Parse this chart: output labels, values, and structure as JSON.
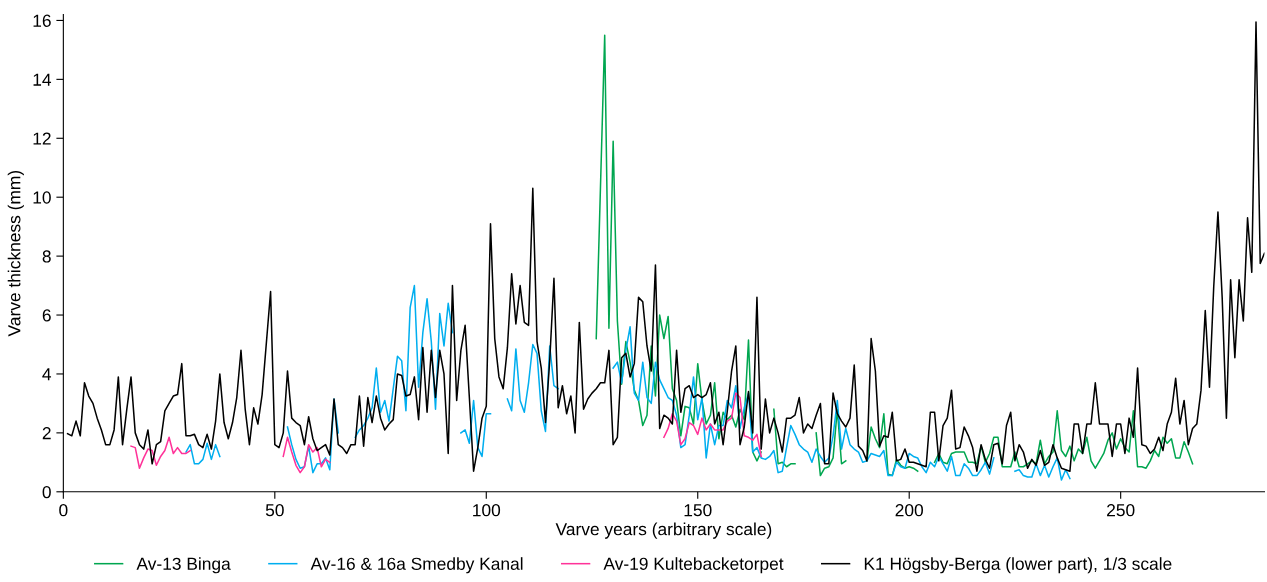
{
  "chart_data": {
    "type": "line",
    "xlabel": "Varve years (arbitrary scale)",
    "ylabel": "Varve thickness (mm)",
    "xlim": [
      0,
      284
    ],
    "xticks": [
      0,
      50,
      100,
      150,
      200,
      250
    ],
    "ylim": [
      0,
      16.2
    ],
    "yticks": [
      0,
      2,
      4,
      6,
      8,
      10,
      12,
      14,
      16
    ],
    "legend": "bottom",
    "line_style": "solid",
    "series": [
      {
        "name": "Av-13 Binga",
        "color": "#00a650",
        "x": [
          126,
          128,
          129,
          130,
          131,
          132,
          133,
          134,
          135,
          136,
          137,
          138,
          139,
          140,
          141,
          142,
          143,
          144,
          145,
          146,
          147,
          148,
          149,
          150,
          151,
          152,
          153,
          154,
          155,
          156,
          157,
          158,
          159,
          160,
          161,
          162,
          163,
          164,
          165,
          166,
          168,
          169,
          170,
          171,
          172,
          173,
          174,
          178,
          179,
          180,
          181,
          182,
          183,
          184,
          185,
          186,
          190,
          191,
          192,
          193,
          194,
          195,
          196,
          197,
          198,
          199,
          200,
          201,
          202,
          203,
          206,
          207,
          208,
          209,
          210,
          211,
          212,
          213,
          214,
          215,
          216,
          217,
          218,
          219,
          220,
          221,
          222,
          223,
          224,
          225,
          226,
          227,
          228,
          229,
          230,
          231,
          232,
          233,
          234,
          235,
          236,
          237,
          238,
          239,
          240,
          241,
          242,
          243,
          244,
          245,
          246,
          247,
          248,
          249,
          250,
          251,
          252,
          253,
          254,
          255,
          256,
          257,
          258,
          259,
          260,
          261,
          262,
          263,
          264,
          265,
          266,
          267
        ],
        "values": [
          5.2,
          15.5,
          5.55,
          11.9,
          5.8,
          3.65,
          5.1,
          4.4,
          3.45,
          3.1,
          2.25,
          2.6,
          4.95,
          3.25,
          6.0,
          5.2,
          5.95,
          3.5,
          3.1,
          1.9,
          2.9,
          2.85,
          2.3,
          4.35,
          3.1,
          2.3,
          2.6,
          3.7,
          1.8,
          2.7,
          2.45,
          2.6,
          2.2,
          2.8,
          2.45,
          5.15,
          1.35,
          1.05,
          1.35,
          null,
          2.8,
          0.95,
          1.0,
          0.85,
          0.95,
          0.95,
          null,
          2.0,
          0.55,
          0.8,
          0.85,
          1.15,
          2.8,
          0.95,
          1.05,
          null,
          1.05,
          2.2,
          1.8,
          1.5,
          2.65,
          0.6,
          0.55,
          1.1,
          0.9,
          0.8,
          0.85,
          0.8,
          0.7,
          null,
          1.0,
          1.3,
          1.0,
          0.95,
          1.3,
          1.35,
          1.35,
          1.35,
          1.0,
          1.0,
          0.95,
          1.55,
          1.0,
          1.3,
          1.85,
          1.85,
          0.85,
          0.85,
          0.85,
          1.35,
          0.85,
          0.85,
          0.95,
          1.05,
          0.95,
          1.75,
          0.95,
          1.2,
          1.35,
          2.75,
          1.4,
          1.2,
          1.55,
          1.05,
          1.45,
          1.3,
          1.85,
          1.05,
          0.8,
          1.05,
          1.3,
          1.75,
          2.0,
          1.45,
          1.8,
          1.5,
          1.35,
          2.75,
          0.85,
          0.85,
          0.8,
          1.05,
          1.4,
          1.2,
          1.85,
          1.65,
          1.8,
          1.15,
          1.15,
          1.7,
          1.35,
          0.95
        ]
      },
      {
        "name": "Av-16 & 16a Smedby Kanal",
        "color": "#00aeef",
        "x": [
          29,
          30,
          31,
          32,
          33,
          34,
          35,
          36,
          37,
          38,
          53,
          54,
          55,
          56,
          57,
          58,
          59,
          60,
          61,
          62,
          63,
          64,
          65,
          66,
          69,
          70,
          71,
          72,
          73,
          74,
          75,
          76,
          77,
          78,
          79,
          80,
          81,
          82,
          83,
          84,
          85,
          86,
          87,
          88,
          89,
          90,
          91,
          92,
          93,
          94,
          95,
          96,
          97,
          98,
          99,
          100,
          101,
          102,
          105,
          106,
          107,
          108,
          109,
          110,
          111,
          112,
          113,
          114,
          115,
          116,
          117,
          118,
          130,
          131,
          132,
          133,
          134,
          135,
          136,
          137,
          138,
          139,
          140,
          141,
          142,
          143,
          144,
          145,
          146,
          147,
          148,
          149,
          150,
          151,
          152,
          153,
          154,
          155,
          156,
          157,
          158,
          159,
          160,
          161,
          162,
          163,
          164,
          165,
          166,
          167,
          168,
          169,
          170,
          171,
          172,
          173,
          174,
          175,
          176,
          177,
          178,
          179,
          180,
          181,
          182,
          183,
          184,
          185,
          186,
          187,
          188,
          189,
          190,
          191,
          192,
          193,
          194,
          195,
          196,
          197,
          198,
          199,
          200,
          201,
          202,
          203,
          204,
          205,
          206,
          207,
          208,
          209,
          210,
          211,
          212,
          213,
          214,
          215,
          216,
          217,
          218,
          219,
          220,
          221,
          225,
          226,
          227,
          228,
          229,
          230,
          231,
          232,
          233,
          234,
          235,
          236,
          237,
          238
        ],
        "values": [
          1.35,
          1.6,
          0.95,
          0.95,
          1.1,
          1.65,
          1.1,
          1.6,
          1.2,
          null,
          2.2,
          1.6,
          1.1,
          0.8,
          0.85,
          1.55,
          0.65,
          0.95,
          0.95,
          1.15,
          0.75,
          3.15,
          2.0,
          null,
          1.85,
          2.1,
          2.25,
          2.5,
          2.85,
          4.2,
          2.7,
          3.1,
          2.4,
          3.5,
          4.6,
          4.45,
          2.75,
          6.25,
          7.0,
          3.55,
          5.4,
          6.55,
          5.1,
          2.8,
          6.05,
          4.95,
          6.4,
          5.4,
          null,
          2.0,
          2.1,
          1.65,
          3.1,
          1.5,
          1.2,
          2.65,
          2.65,
          null,
          3.15,
          2.75,
          4.85,
          3.1,
          2.7,
          3.7,
          5.0,
          4.7,
          2.75,
          2.05,
          4.95,
          3.6,
          3.5,
          null,
          4.2,
          4.4,
          3.7,
          4.8,
          5.6,
          3.35,
          3.1,
          4.4,
          3.2,
          3.0,
          4.4,
          3.8,
          3.5,
          3.2,
          3.1,
          2.6,
          1.5,
          1.6,
          2.6,
          3.9,
          2.45,
          3.2,
          1.15,
          2.3,
          1.6,
          2.25,
          2.25,
          3.1,
          2.85,
          3.6,
          2.15,
          2.85,
          3.35,
          1.35,
          1.5,
          1.15,
          1.1,
          1.2,
          1.4,
          0.65,
          0.7,
          1.5,
          2.25,
          1.95,
          1.6,
          1.45,
          1.35,
          1.0,
          1.45,
          1.2,
          1.0,
          1.15,
          1.9,
          3.1,
          1.45,
          2.15,
          1.6,
          1.45,
          1.35,
          1.0,
          1.05,
          1.3,
          1.25,
          1.2,
          1.4,
          0.55,
          0.55,
          1.0,
          0.85,
          0.8,
          1.3,
          1.2,
          1.15,
          0.85,
          0.65,
          1.0,
          0.85,
          1.2,
          0.95,
          0.7,
          1.2,
          0.55,
          0.55,
          0.95,
          0.8,
          0.55,
          0.55,
          0.75,
          1.0,
          0.6,
          1.15,
          null,
          0.7,
          0.75,
          0.55,
          0.5,
          0.5,
          0.95,
          0.55,
          0.9,
          0.5,
          0.85,
          1.15,
          0.4,
          0.75,
          0.45
        ]
      },
      {
        "name": "Av-19 Kultebacketorpet",
        "color": "#ff3399",
        "x": [
          16,
          17,
          18,
          19,
          20,
          21,
          22,
          23,
          24,
          25,
          26,
          27,
          28,
          29,
          30,
          31,
          52,
          53,
          54,
          55,
          56,
          57,
          58,
          59,
          60,
          61,
          62,
          63,
          64,
          142,
          143,
          144,
          145,
          146,
          147,
          148,
          149,
          150,
          151,
          152,
          153,
          154,
          155,
          156,
          157,
          158,
          159,
          160,
          161,
          162,
          163,
          164,
          165
        ],
        "values": [
          1.55,
          1.5,
          0.8,
          1.15,
          1.45,
          1.4,
          0.9,
          1.2,
          1.4,
          1.85,
          1.3,
          1.5,
          1.3,
          1.3,
          1.4,
          null,
          1.2,
          1.85,
          1.35,
          0.9,
          0.65,
          0.85,
          1.6,
          1.35,
          1.5,
          0.85,
          1.1,
          1.0,
          null,
          1.85,
          2.15,
          2.65,
          2.4,
          1.6,
          1.8,
          2.35,
          2.25,
          1.95,
          2.5,
          2.1,
          2.3,
          2.1,
          2.1,
          2.1,
          2.4,
          2.5,
          3.35,
          3.2,
          1.9,
          1.85,
          1.75,
          1.95,
          1.2
        ]
      },
      {
        "name": "K1 Högsby-Berga (lower part), 1/3 scale",
        "color": "#000000",
        "x": [
          1,
          2,
          3,
          4,
          5,
          6,
          7,
          8,
          9,
          10,
          11,
          12,
          13,
          14,
          15,
          16,
          17,
          18,
          19,
          20,
          21,
          22,
          23,
          24,
          25,
          26,
          27,
          28,
          29,
          30,
          31,
          32,
          33,
          34,
          35,
          36,
          37,
          38,
          39,
          40,
          41,
          42,
          43,
          44,
          45,
          46,
          47,
          49,
          50,
          51,
          52,
          53,
          54,
          55,
          56,
          57,
          58,
          59,
          60,
          61,
          62,
          63,
          64,
          65,
          66,
          67,
          68,
          69,
          70,
          71,
          72,
          73,
          74,
          75,
          76,
          77,
          78,
          79,
          80,
          81,
          82,
          83,
          84,
          85,
          86,
          87,
          88,
          89,
          90,
          91,
          92,
          93,
          94,
          95,
          96,
          97,
          98,
          99,
          100,
          101,
          102,
          103,
          104,
          105,
          106,
          107,
          108,
          109,
          110,
          111,
          112,
          113,
          114,
          115,
          116,
          117,
          118,
          119,
          120,
          121,
          122,
          123,
          124,
          125,
          126,
          127,
          128,
          129,
          130,
          131,
          132,
          133,
          134,
          135,
          136,
          137,
          138,
          139,
          140,
          141,
          142,
          143,
          144,
          145,
          146,
          147,
          148,
          149,
          150,
          151,
          152,
          153,
          154,
          155,
          156,
          157,
          158,
          159,
          160,
          161,
          162,
          163,
          164,
          165,
          166,
          167,
          168,
          169,
          170,
          171,
          172,
          173,
          174,
          175,
          176,
          177,
          178,
          179,
          180,
          181,
          182,
          183,
          184,
          185,
          186,
          187,
          188,
          189,
          190,
          191,
          192,
          193,
          194,
          195,
          196,
          197,
          198,
          199,
          200,
          201,
          202,
          203,
          204,
          205,
          206,
          207,
          208,
          209,
          210,
          211,
          212,
          213,
          214,
          215,
          216,
          217,
          218,
          219,
          220,
          221,
          222,
          223,
          224,
          225,
          226,
          227,
          228,
          229,
          230,
          231,
          232,
          233,
          234,
          235,
          236,
          237,
          238,
          239,
          240,
          241,
          242,
          243,
          244,
          245,
          246,
          247,
          248,
          249,
          250,
          251,
          252,
          253,
          254,
          255,
          256,
          257,
          258,
          259,
          260,
          261,
          262,
          263,
          264,
          265,
          266,
          267,
          268,
          269,
          270,
          271,
          272,
          273,
          274,
          275,
          276,
          277,
          278,
          279,
          280,
          281,
          282,
          283,
          284
        ],
        "values": [
          1.97,
          1.9,
          2.4,
          1.9,
          3.7,
          3.25,
          3.0,
          2.5,
          2.1,
          1.6,
          1.6,
          2.1,
          3.9,
          1.6,
          2.8,
          3.9,
          2.0,
          1.6,
          1.45,
          2.1,
          0.95,
          1.6,
          1.7,
          2.75,
          3.0,
          3.25,
          3.3,
          4.35,
          1.9,
          1.9,
          1.95,
          1.6,
          1.5,
          1.95,
          1.45,
          2.4,
          4.0,
          2.35,
          1.8,
          2.35,
          3.2,
          4.8,
          2.8,
          1.6,
          2.85,
          2.3,
          3.3,
          6.8,
          1.6,
          1.5,
          2.0,
          4.1,
          2.5,
          2.35,
          2.25,
          1.6,
          2.55,
          1.8,
          1.4,
          1.5,
          1.6,
          1.25,
          3.15,
          1.6,
          1.5,
          1.3,
          1.6,
          1.6,
          3.25,
          1.55,
          3.2,
          2.35,
          3.25,
          2.5,
          2.1,
          2.3,
          2.45,
          4.0,
          3.95,
          3.25,
          3.3,
          3.9,
          2.45,
          4.9,
          2.7,
          4.8,
          3.2,
          4.8,
          4.0,
          1.3,
          7.0,
          3.1,
          4.8,
          5.65,
          3.2,
          0.7,
          1.5,
          2.5,
          2.9,
          9.1,
          5.2,
          3.9,
          3.5,
          4.9,
          7.4,
          5.7,
          7.0,
          5.75,
          5.65,
          10.3,
          5.1,
          4.2,
          2.35,
          4.45,
          7.25,
          2.85,
          3.6,
          2.65,
          3.25,
          2.0,
          5.75,
          2.8,
          3.15,
          3.35,
          3.5,
          3.7,
          3.7,
          4.8,
          1.6,
          1.85,
          4.55,
          4.7,
          3.9,
          4.35,
          6.6,
          6.45,
          4.95,
          4.1,
          7.7,
          2.15,
          2.6,
          2.5,
          2.3,
          4.8,
          2.7,
          3.5,
          3.6,
          3.2,
          3.3,
          3.2,
          3.3,
          3.7,
          2.3,
          2.7,
          1.6,
          2.75,
          4.1,
          4.95,
          1.6,
          2.2,
          3.4,
          2.0,
          6.6,
          1.45,
          3.15,
          2.0,
          2.5,
          2.0,
          1.35,
          2.5,
          2.5,
          2.6,
          3.2,
          2.0,
          2.3,
          2.15,
          2.6,
          3.0,
          0.95,
          0.95,
          3.35,
          2.65,
          2.4,
          2.2,
          2.5,
          4.3,
          1.55,
          1.4,
          1.05,
          5.2,
          4.1,
          1.55,
          1.9,
          1.85,
          2.7,
          1.05,
          1.1,
          1.45,
          1.0,
          1.0,
          0.95,
          0.9,
          0.85,
          2.7,
          2.7,
          1.05,
          2.25,
          2.5,
          3.45,
          1.45,
          1.5,
          2.2,
          1.9,
          1.5,
          0.7,
          1.6,
          1.1,
          0.8,
          1.6,
          1.65,
          0.95,
          2.25,
          2.7,
          1.05,
          1.6,
          1.35,
          0.8,
          1.1,
          0.9,
          1.4,
          0.9,
          1.0,
          1.6,
          1.15,
          0.8,
          0.75,
          0.7,
          2.3,
          2.3,
          1.3,
          2.3,
          2.3,
          3.7,
          2.3,
          2.3,
          2.3,
          1.2,
          2.3,
          2.3,
          1.3,
          2.5,
          1.85,
          4.2,
          1.6,
          1.55,
          1.3,
          1.45,
          1.85,
          1.4,
          2.3,
          2.7,
          3.85,
          2.3,
          3.1,
          1.6,
          2.15,
          2.3,
          3.45,
          6.15,
          3.55,
          6.95,
          9.5,
          6.6,
          2.5,
          7.2,
          4.55,
          7.2,
          5.8,
          9.3,
          7.45,
          15.95,
          7.75,
          8.1
        ]
      }
    ]
  }
}
